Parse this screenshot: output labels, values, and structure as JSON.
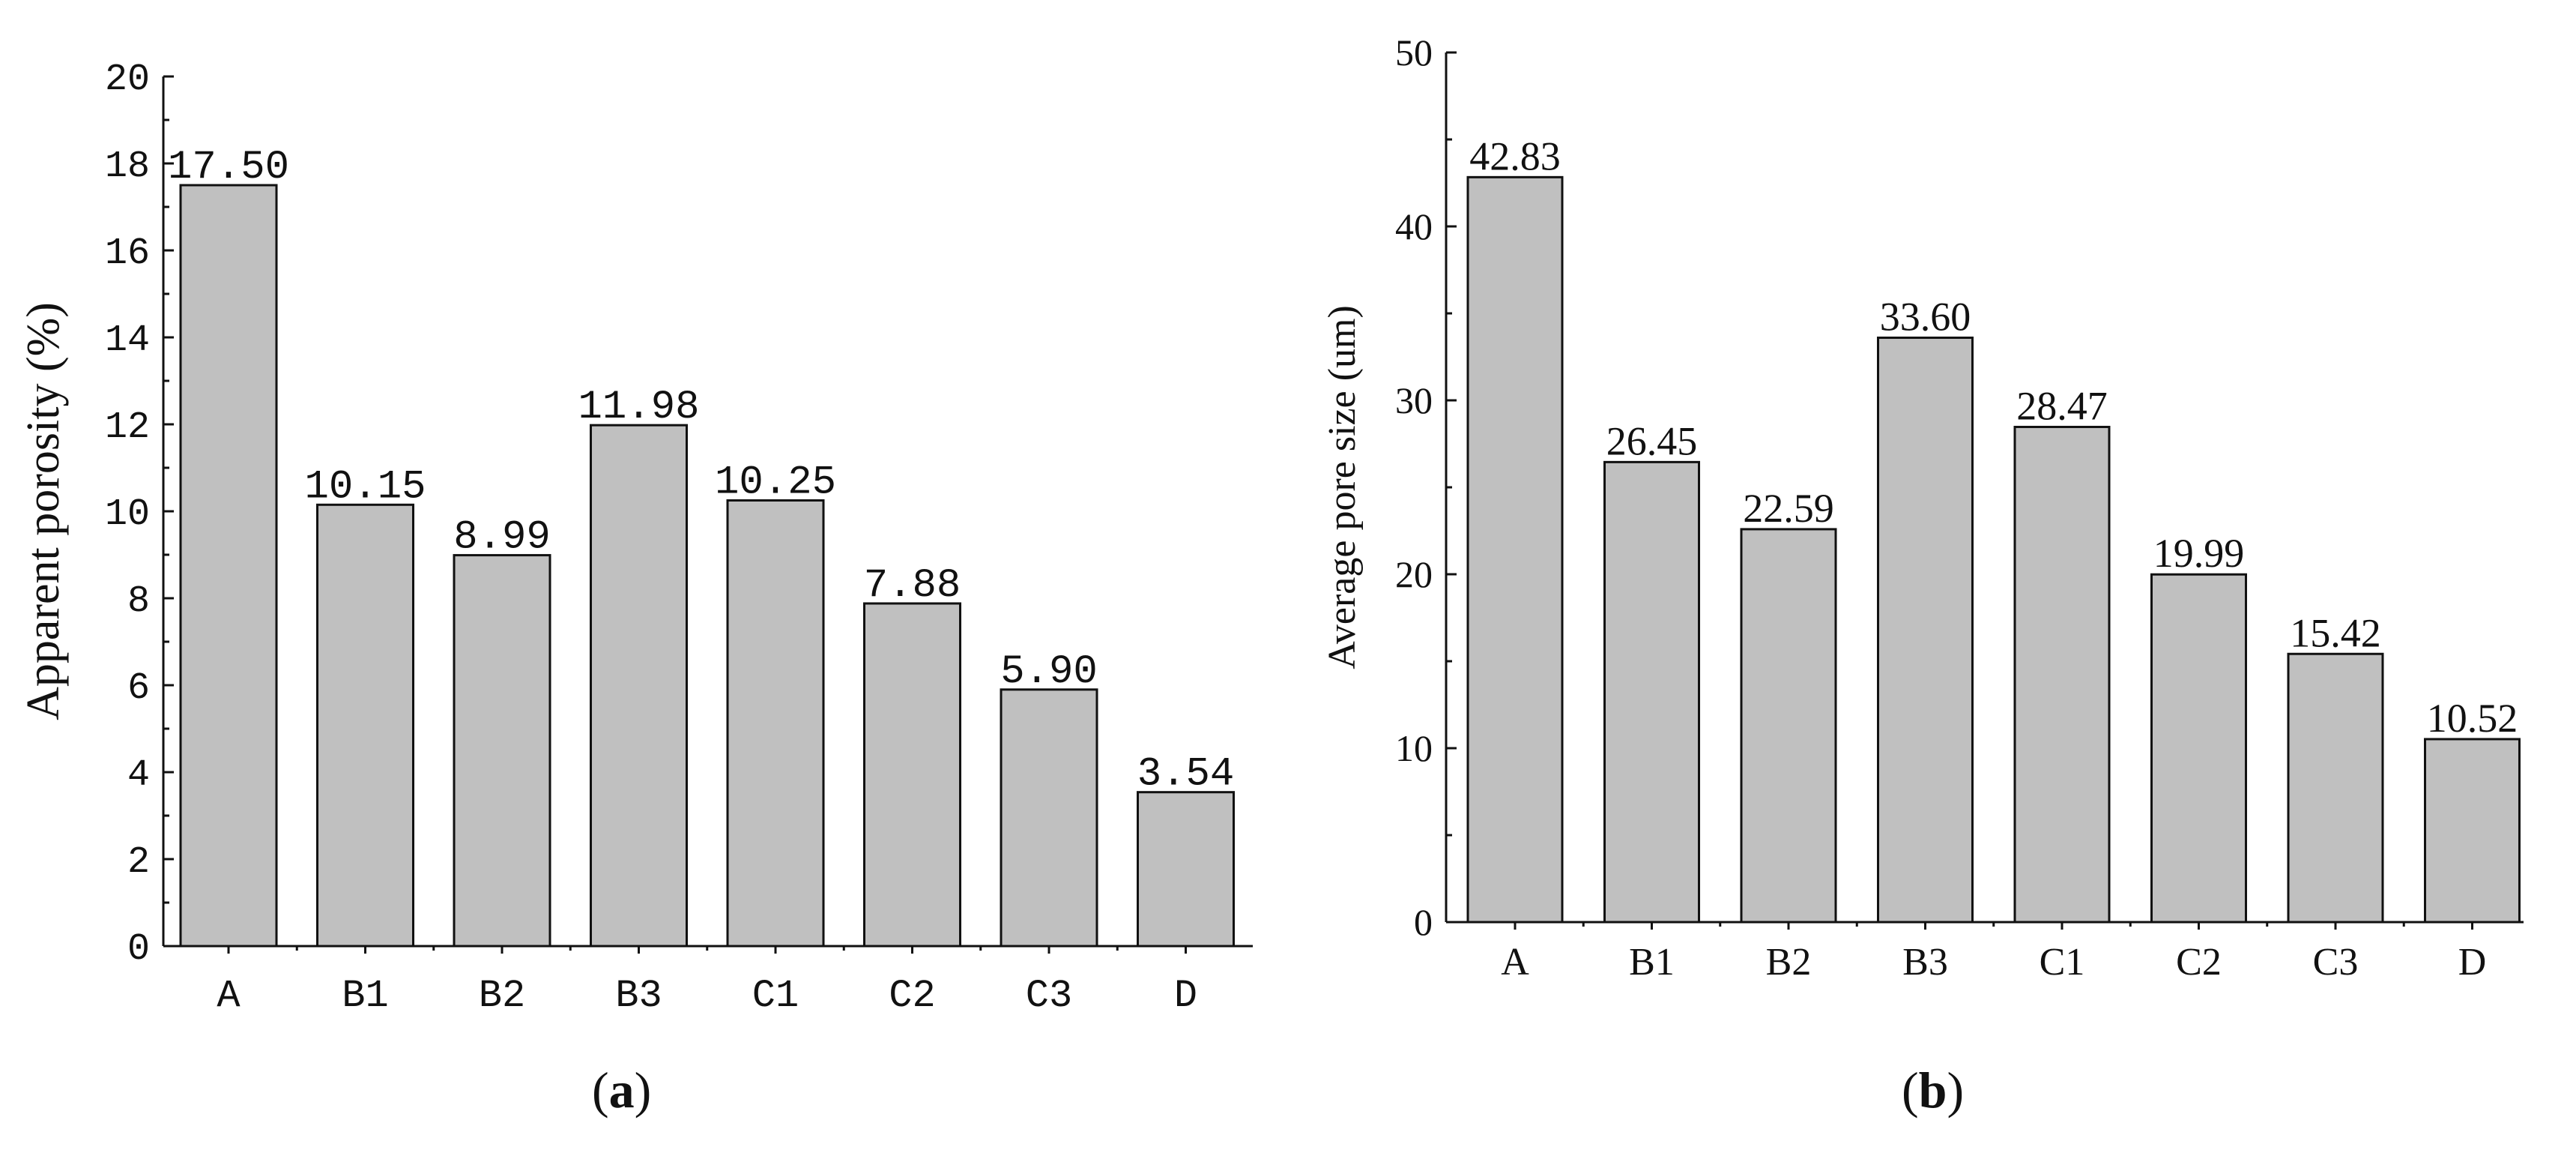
{
  "chart_data": [
    {
      "type": "bar",
      "panel_label": "a",
      "title": "",
      "xlabel": "",
      "ylabel": "Apparent porosity (%)",
      "categories": [
        "A",
        "B1",
        "B2",
        "B3",
        "C1",
        "C2",
        "C3",
        "D"
      ],
      "values": [
        17.5,
        10.15,
        8.99,
        11.98,
        10.25,
        7.88,
        5.9,
        3.54
      ],
      "data_labels": [
        "17.50",
        "10.15",
        "8.99",
        "11.98",
        "10.25",
        "7.88",
        "5.90",
        "3.54"
      ],
      "ylim": [
        0,
        20
      ],
      "yticks": [
        "0",
        "2",
        "4",
        "6",
        "8",
        "10",
        "12",
        "14",
        "16",
        "18",
        "20"
      ],
      "bar_color": "#c0c0c0",
      "grid": false,
      "legend": "none"
    },
    {
      "type": "bar",
      "panel_label": "b",
      "title": "",
      "xlabel": "",
      "ylabel": "Average pore size (um)",
      "categories": [
        "A",
        "B1",
        "B2",
        "B3",
        "C1",
        "C2",
        "C3",
        "D"
      ],
      "values": [
        42.83,
        26.45,
        22.59,
        33.6,
        28.47,
        19.99,
        15.42,
        10.52
      ],
      "data_labels": [
        "42.83",
        "26.45",
        "22.59",
        "33.60",
        "28.47",
        "19.99",
        "15.42",
        "10.52"
      ],
      "ylim": [
        0,
        50
      ],
      "yticks": [
        "0",
        "10",
        "20",
        "30",
        "40",
        "50"
      ],
      "bar_color": "#c0c0c0",
      "grid": false,
      "legend": "none"
    }
  ]
}
